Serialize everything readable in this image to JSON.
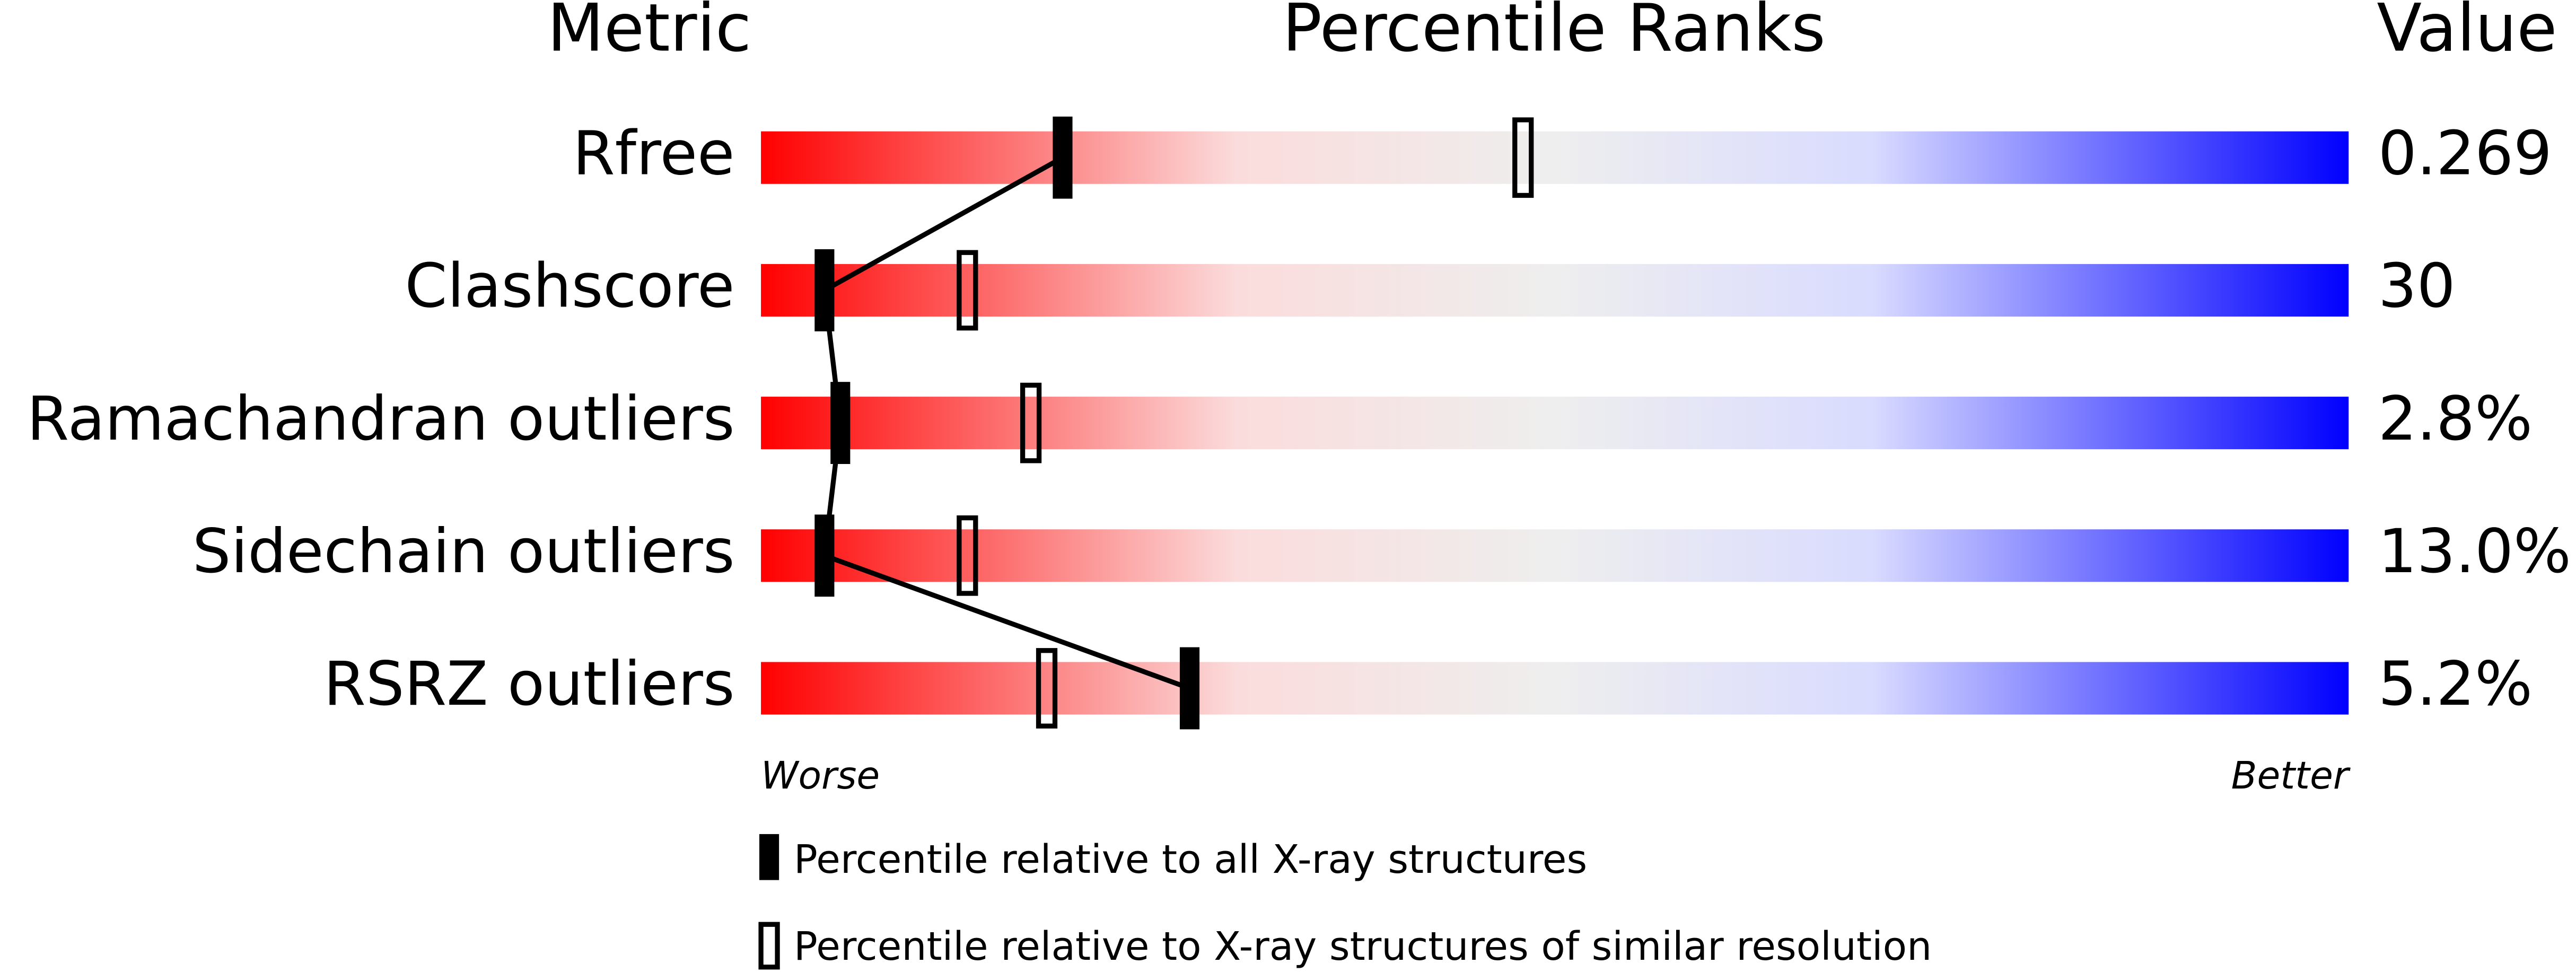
{
  "chart_data": {
    "type": "percentile-slider",
    "headers": [
      "Metric",
      "Percentile Ranks",
      "Value"
    ],
    "categories": [
      "Rfree",
      "Clashscore",
      "Ramachandran outliers",
      "Sidechain outliers",
      "RSRZ outliers"
    ],
    "metric_values": [
      "0.269",
      "30",
      "2.8%",
      "13.0%",
      "5.2%"
    ],
    "xlim": [
      0,
      100
    ],
    "x_labels": [
      "Worse",
      "Better"
    ],
    "series": [
      {
        "name": "Percentile relative to all X-ray structures",
        "color": "#000000",
        "style": "filled",
        "values": [
          19,
          4,
          5,
          4,
          27
        ]
      },
      {
        "name": "Percentile relative to X-ray structures of similar resolution",
        "color": "#000000",
        "style": "open",
        "values": [
          48,
          13,
          17,
          13,
          18
        ]
      }
    ]
  }
}
